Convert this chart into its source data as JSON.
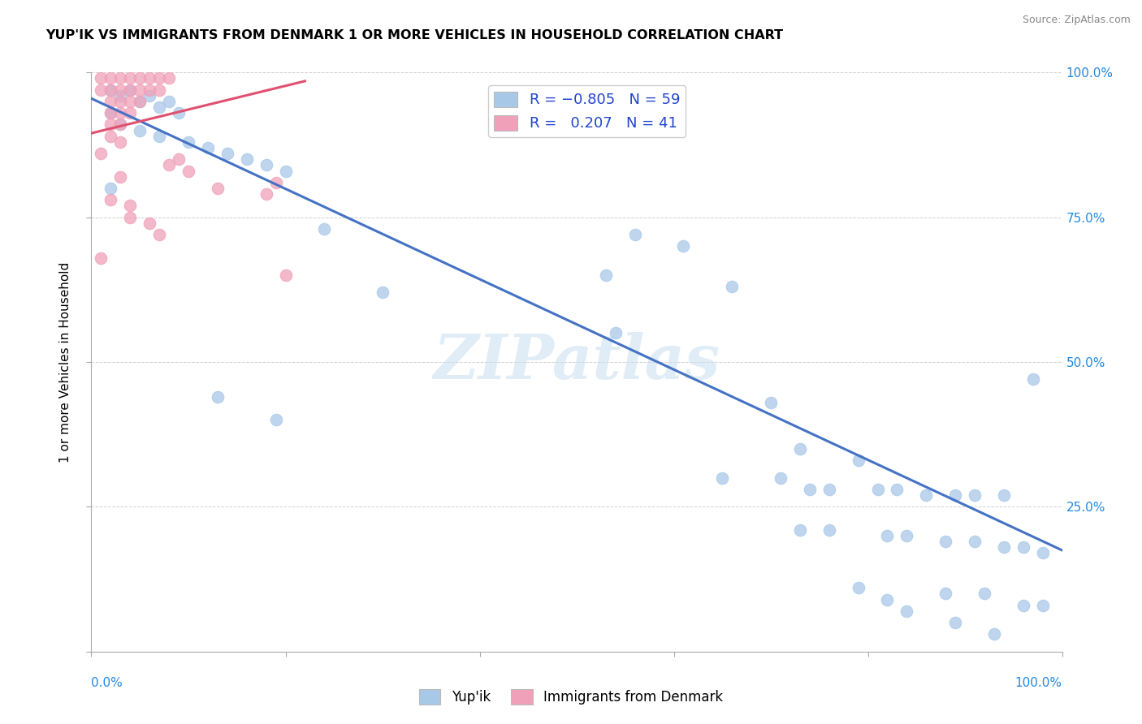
{
  "title": "YUP'IK VS IMMIGRANTS FROM DENMARK 1 OR MORE VEHICLES IN HOUSEHOLD CORRELATION CHART",
  "source": "Source: ZipAtlas.com",
  "ylabel": "1 or more Vehicles in Household",
  "xlim": [
    0,
    1
  ],
  "ylim": [
    0,
    1
  ],
  "yticks": [
    0,
    0.25,
    0.5,
    0.75,
    1.0
  ],
  "ytick_labels": [
    "",
    "25.0%",
    "50.0%",
    "75.0%",
    "100.0%"
  ],
  "xticks": [
    0,
    0.2,
    0.4,
    0.6,
    0.8,
    1.0
  ],
  "blue_color": "#a8c8e8",
  "pink_color": "#f0a0b8",
  "line_blue": "#4472c4",
  "line_pink": "#e05070",
  "watermark_text": "ZIPatlas",
  "blue_dots": [
    [
      0.02,
      0.97
    ],
    [
      0.03,
      0.96
    ],
    [
      0.04,
      0.97
    ],
    [
      0.05,
      0.95
    ],
    [
      0.06,
      0.96
    ],
    [
      0.07,
      0.94
    ],
    [
      0.08,
      0.95
    ],
    [
      0.09,
      0.93
    ],
    [
      0.02,
      0.93
    ],
    [
      0.03,
      0.91
    ],
    [
      0.05,
      0.9
    ],
    [
      0.07,
      0.89
    ],
    [
      0.1,
      0.88
    ],
    [
      0.12,
      0.87
    ],
    [
      0.14,
      0.86
    ],
    [
      0.16,
      0.85
    ],
    [
      0.18,
      0.84
    ],
    [
      0.2,
      0.83
    ],
    [
      0.02,
      0.8
    ],
    [
      0.24,
      0.73
    ],
    [
      0.3,
      0.62
    ],
    [
      0.13,
      0.44
    ],
    [
      0.19,
      0.4
    ],
    [
      0.56,
      0.72
    ],
    [
      0.61,
      0.7
    ],
    [
      0.53,
      0.65
    ],
    [
      0.66,
      0.63
    ],
    [
      0.54,
      0.55
    ],
    [
      0.7,
      0.43
    ],
    [
      0.97,
      0.47
    ],
    [
      0.73,
      0.35
    ],
    [
      0.79,
      0.33
    ],
    [
      0.65,
      0.3
    ],
    [
      0.71,
      0.3
    ],
    [
      0.74,
      0.28
    ],
    [
      0.76,
      0.28
    ],
    [
      0.81,
      0.28
    ],
    [
      0.83,
      0.28
    ],
    [
      0.86,
      0.27
    ],
    [
      0.89,
      0.27
    ],
    [
      0.91,
      0.27
    ],
    [
      0.94,
      0.27
    ],
    [
      0.73,
      0.21
    ],
    [
      0.76,
      0.21
    ],
    [
      0.82,
      0.2
    ],
    [
      0.84,
      0.2
    ],
    [
      0.88,
      0.19
    ],
    [
      0.91,
      0.19
    ],
    [
      0.94,
      0.18
    ],
    [
      0.96,
      0.18
    ],
    [
      0.98,
      0.17
    ],
    [
      0.88,
      0.1
    ],
    [
      0.92,
      0.1
    ],
    [
      0.79,
      0.11
    ],
    [
      0.82,
      0.09
    ],
    [
      0.84,
      0.07
    ],
    [
      0.89,
      0.05
    ],
    [
      0.93,
      0.03
    ],
    [
      0.96,
      0.08
    ],
    [
      0.98,
      0.08
    ]
  ],
  "pink_dots": [
    [
      0.01,
      0.99
    ],
    [
      0.02,
      0.99
    ],
    [
      0.03,
      0.99
    ],
    [
      0.04,
      0.99
    ],
    [
      0.05,
      0.99
    ],
    [
      0.06,
      0.99
    ],
    [
      0.07,
      0.99
    ],
    [
      0.08,
      0.99
    ],
    [
      0.01,
      0.97
    ],
    [
      0.02,
      0.97
    ],
    [
      0.03,
      0.97
    ],
    [
      0.04,
      0.97
    ],
    [
      0.05,
      0.97
    ],
    [
      0.06,
      0.97
    ],
    [
      0.07,
      0.97
    ],
    [
      0.02,
      0.95
    ],
    [
      0.03,
      0.95
    ],
    [
      0.04,
      0.95
    ],
    [
      0.05,
      0.95
    ],
    [
      0.02,
      0.93
    ],
    [
      0.03,
      0.93
    ],
    [
      0.04,
      0.93
    ],
    [
      0.02,
      0.91
    ],
    [
      0.03,
      0.91
    ],
    [
      0.02,
      0.89
    ],
    [
      0.03,
      0.88
    ],
    [
      0.01,
      0.86
    ],
    [
      0.09,
      0.85
    ],
    [
      0.03,
      0.82
    ],
    [
      0.19,
      0.81
    ],
    [
      0.02,
      0.78
    ],
    [
      0.04,
      0.75
    ],
    [
      0.07,
      0.72
    ],
    [
      0.18,
      0.79
    ],
    [
      0.01,
      0.68
    ],
    [
      0.04,
      0.77
    ],
    [
      0.06,
      0.74
    ],
    [
      0.08,
      0.84
    ],
    [
      0.1,
      0.83
    ],
    [
      0.13,
      0.8
    ],
    [
      0.2,
      0.65
    ]
  ],
  "blue_line_x": [
    0.0,
    1.0
  ],
  "blue_line_y": [
    0.955,
    0.175
  ],
  "pink_line_x": [
    0.0,
    0.22
  ],
  "pink_line_y": [
    0.895,
    0.985
  ]
}
